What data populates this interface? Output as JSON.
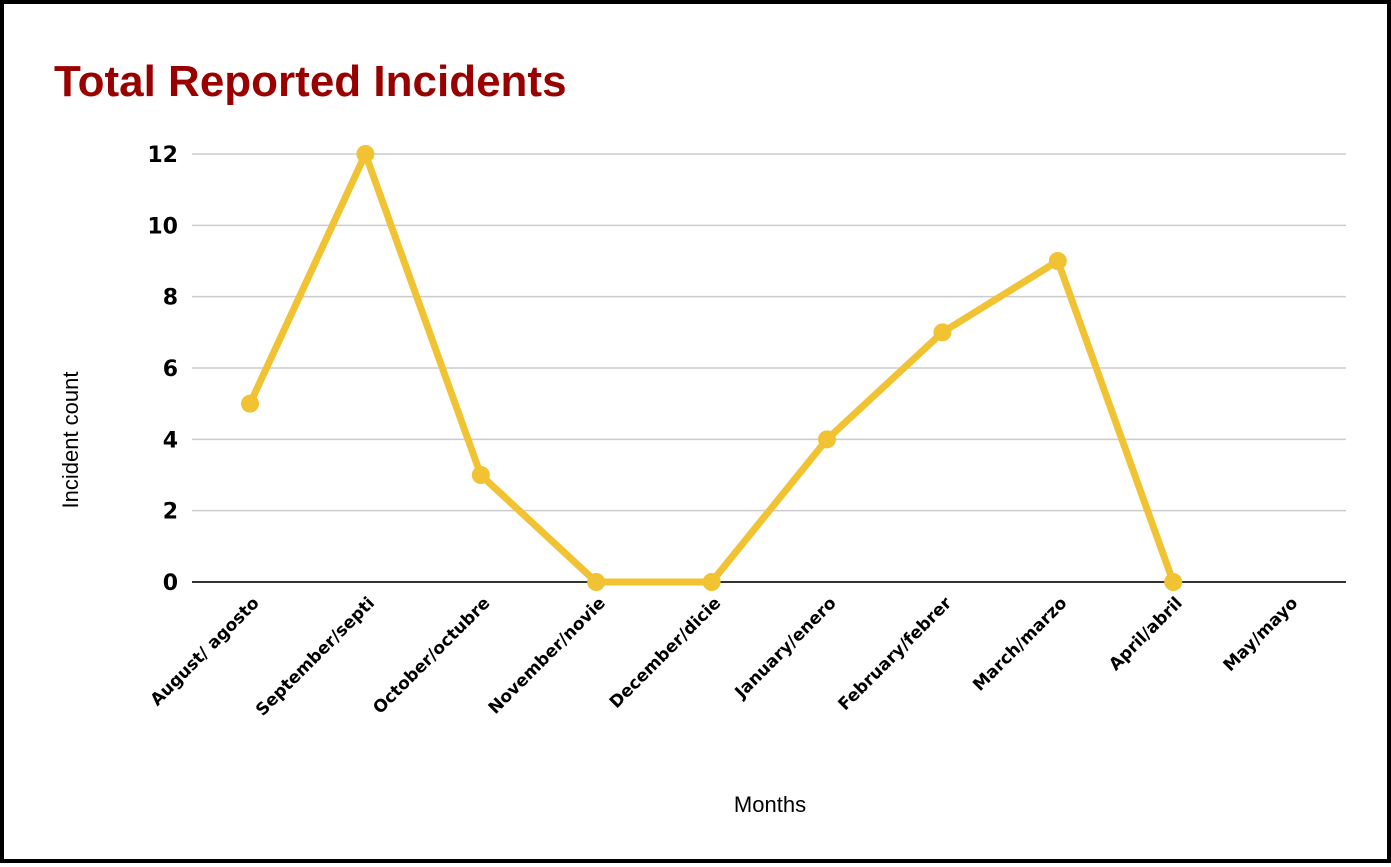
{
  "chart_data": {
    "type": "line",
    "title": "Total Reported Incidents",
    "xlabel": "Months",
    "ylabel": "Incident count",
    "categories": [
      "August/ agosto",
      "September/septi",
      "October/octubre",
      "November/novie",
      "December/dicie",
      "January/enero",
      "February/febrer",
      "March/marzo",
      "April/abril",
      "May/mayo"
    ],
    "series": [
      {
        "values": [
          5,
          12,
          3,
          0,
          0,
          4,
          7,
          9,
          0,
          null
        ]
      }
    ],
    "ylim": [
      0,
      12
    ],
    "yticks": [
      0,
      2,
      4,
      6,
      8,
      10,
      12
    ],
    "grid": true,
    "legend": "none",
    "colors": {
      "line": "#f1c232",
      "title": "#990000",
      "grid": "#cccccc",
      "baseline": "#333333"
    }
  }
}
